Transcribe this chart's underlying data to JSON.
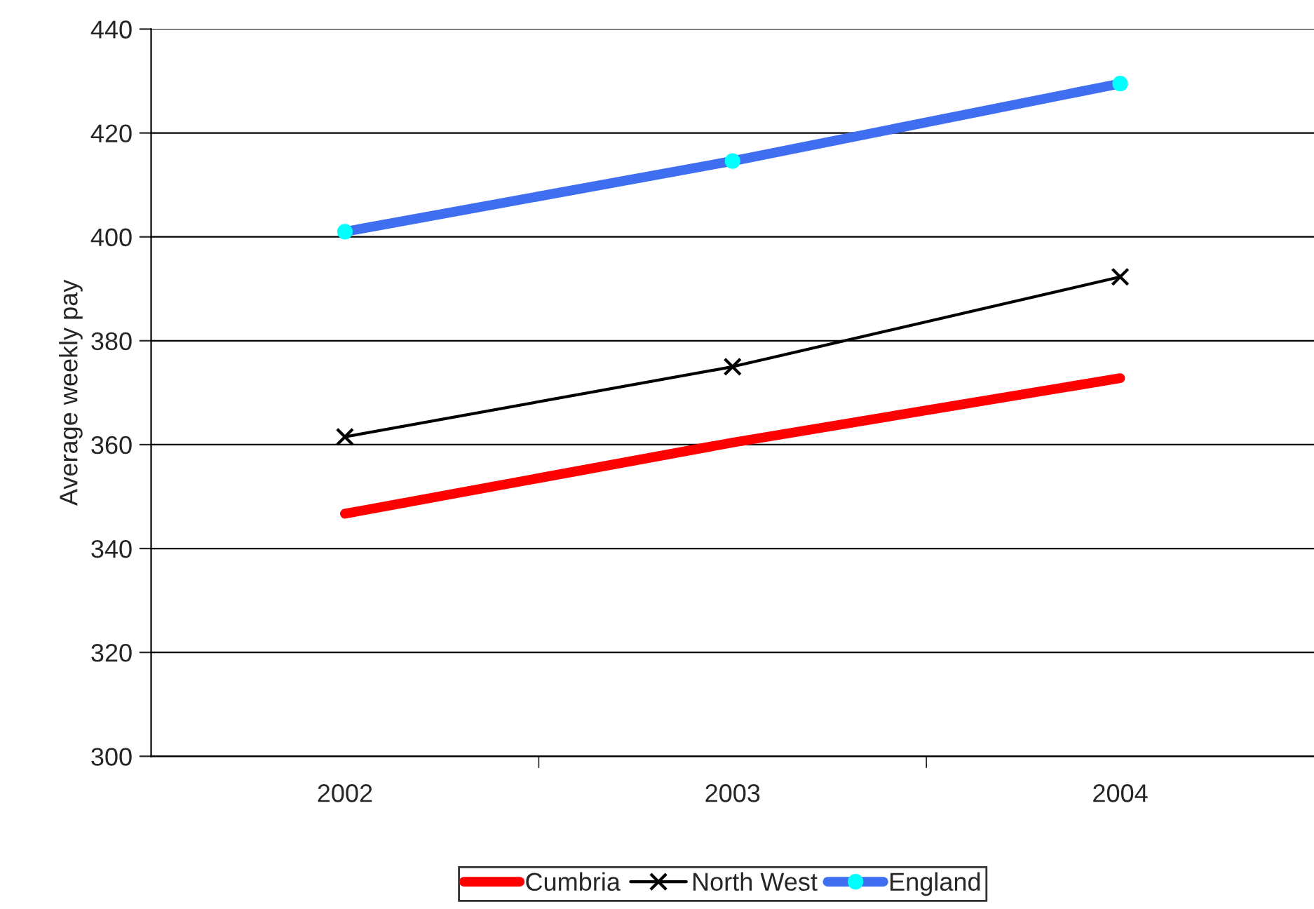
{
  "chart_data": {
    "type": "line",
    "ylabel": "Average weekly pay",
    "categories": [
      "2002",
      "2003",
      "2004"
    ],
    "series": [
      {
        "name": "Cumbria",
        "color": "#ff0000",
        "values": [
          346.7,
          360.4,
          372.8
        ],
        "marker": "none"
      },
      {
        "name": "North West",
        "color": "#000000",
        "values": [
          361.5,
          375,
          392.3
        ],
        "marker": "cross"
      },
      {
        "name": "England",
        "color": "#3f6ff0",
        "values": [
          401,
          414.6,
          429.5
        ],
        "marker": "circle"
      }
    ],
    "ylim": [
      300,
      440
    ],
    "yticks": [
      300,
      320,
      340,
      360,
      380,
      400,
      420,
      440
    ],
    "grid": "y",
    "legend": "bottom"
  }
}
